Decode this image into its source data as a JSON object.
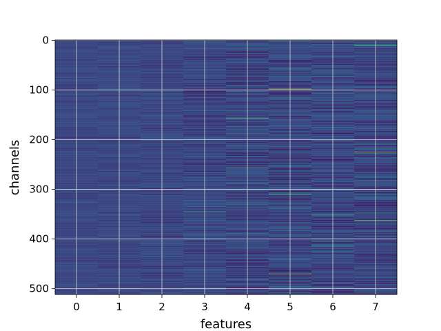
{
  "chart_data": {
    "type": "heatmap",
    "xlabel": "features",
    "ylabel": "channels",
    "x_categories": [
      "0",
      "1",
      "2",
      "3",
      "4",
      "5",
      "6",
      "7"
    ],
    "y_ticks": [
      0,
      100,
      200,
      300,
      400,
      500
    ],
    "n_rows": 512,
    "n_cols": 8,
    "xlim": [
      -0.5,
      7.5
    ],
    "ylim": [
      511.5,
      -0.5
    ],
    "y_inverted": true,
    "grid": true,
    "colormap": "viridis",
    "column_spread": [
      0.06,
      0.07,
      0.09,
      0.12,
      0.16,
      0.17,
      0.15,
      0.17
    ],
    "background_level": 0.22,
    "highlights": [
      {
        "col": 5,
        "row": 98,
        "value": 0.9
      },
      {
        "col": 5,
        "row": 310,
        "value": 0.75
      },
      {
        "col": 5,
        "row": 470,
        "value": 0.8
      },
      {
        "col": 7,
        "row": 225,
        "value": 0.85
      },
      {
        "col": 7,
        "row": 363,
        "value": 0.8
      },
      {
        "col": 7,
        "row": 10,
        "value": 0.7
      },
      {
        "col": 4,
        "row": 157,
        "value": 0.7
      },
      {
        "col": 4,
        "row": 255,
        "value": 0.65
      },
      {
        "col": 6,
        "row": 350,
        "value": 0.65
      },
      {
        "col": 3,
        "row": 345,
        "value": 0.6
      }
    ]
  }
}
